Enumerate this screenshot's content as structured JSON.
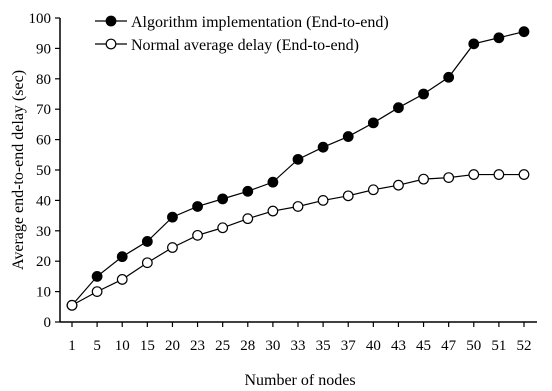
{
  "chart_data": {
    "type": "line",
    "title": "",
    "xlabel": "Number of nodes",
    "ylabel": "Average end-to-end delay (sec)",
    "ylim": [
      0,
      100
    ],
    "yticks": [
      0,
      10,
      20,
      30,
      40,
      50,
      60,
      70,
      80,
      90,
      100
    ],
    "categories": [
      "1",
      "5",
      "10",
      "15",
      "20",
      "23",
      "25",
      "28",
      "30",
      "33",
      "35",
      "37",
      "40",
      "43",
      "45",
      "47",
      "50",
      "51",
      "52"
    ],
    "grid": false,
    "legend_position": "top-left",
    "series": [
      {
        "name": "Algorithm implementation (End-to-end)",
        "marker": "filled-circle",
        "color": "#000000",
        "values": [
          5.5,
          15,
          21.5,
          26.5,
          34.5,
          38,
          40.5,
          43,
          46,
          53.5,
          57.5,
          61,
          65.5,
          70.5,
          75,
          80.5,
          91.5,
          93.5,
          95.5
        ]
      },
      {
        "name": "Normal average delay (End-to-end)",
        "marker": "open-circle",
        "color": "#000000",
        "values": [
          5.5,
          10,
          14,
          19.5,
          24.5,
          28.5,
          31,
          34,
          36.5,
          38,
          40,
          41.5,
          43.5,
          45,
          47,
          47.5,
          48.5,
          48.5,
          48.5
        ]
      }
    ]
  }
}
